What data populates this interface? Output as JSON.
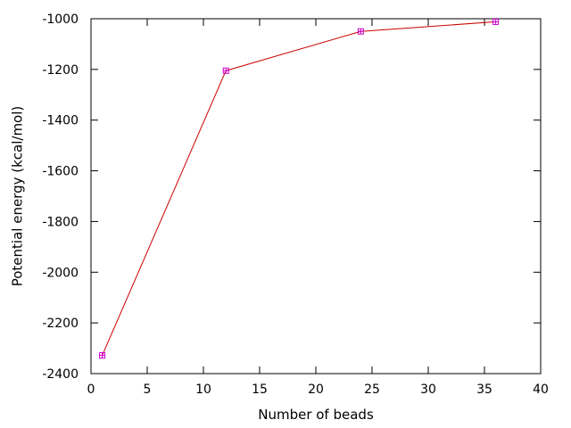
{
  "chart_data": {
    "type": "line",
    "xlabel": "Number of beads",
    "ylabel": "Potential energy (kcal/mol)",
    "xlim": [
      0,
      40
    ],
    "ylim": [
      -2400,
      -1000
    ],
    "xticks": [
      0,
      5,
      10,
      15,
      20,
      25,
      30,
      35,
      40
    ],
    "yticks": [
      -1000,
      -1200,
      -1400,
      -1600,
      -1800,
      -2000,
      -2200,
      -2400
    ],
    "grid": false,
    "legend": "none",
    "series": [
      {
        "x": [
          1,
          12,
          24,
          36
        ],
        "y": [
          -2328,
          -1205,
          -1050,
          -1012
        ],
        "line_color": "#cc0000",
        "marker_color": "#cc00cc",
        "marker": "boxed-plus"
      }
    ]
  }
}
